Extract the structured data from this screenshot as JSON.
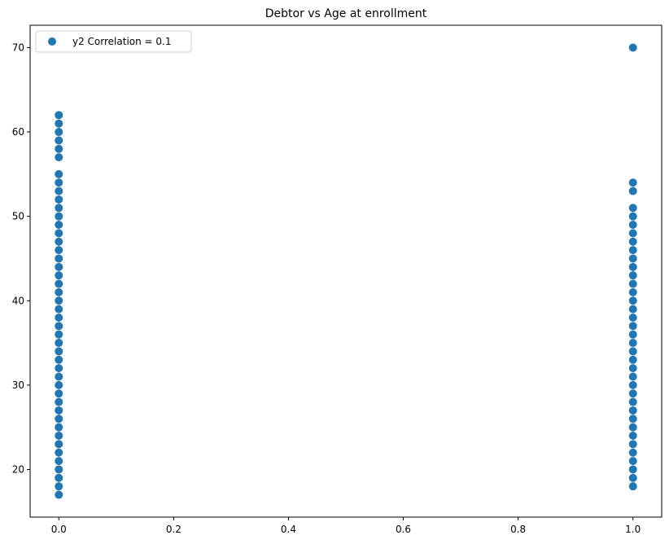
{
  "chart_data": {
    "type": "scatter",
    "title": "Debtor vs Age at enrollment",
    "xlabel": "",
    "ylabel": "",
    "xlim": [
      -0.05,
      1.05
    ],
    "ylim": [
      14.35,
      72.65
    ],
    "x_ticks": [
      0.0,
      0.2,
      0.4,
      0.6,
      0.8,
      1.0
    ],
    "x_tick_labels": [
      "0.0",
      "0.2",
      "0.4",
      "0.6",
      "0.8",
      "1.0"
    ],
    "y_ticks": [
      20,
      30,
      40,
      50,
      60,
      70
    ],
    "y_tick_labels": [
      "20",
      "30",
      "40",
      "50",
      "60",
      "70"
    ],
    "grid": false,
    "legend_position": "top-left",
    "color": "#1f77b4",
    "series": [
      {
        "name": "y2 Correlation = 0.1",
        "points": [
          [
            0,
            17
          ],
          [
            0,
            18
          ],
          [
            0,
            19
          ],
          [
            0,
            20
          ],
          [
            0,
            21
          ],
          [
            0,
            22
          ],
          [
            0,
            23
          ],
          [
            0,
            24
          ],
          [
            0,
            25
          ],
          [
            0,
            26
          ],
          [
            0,
            27
          ],
          [
            0,
            28
          ],
          [
            0,
            29
          ],
          [
            0,
            30
          ],
          [
            0,
            31
          ],
          [
            0,
            32
          ],
          [
            0,
            33
          ],
          [
            0,
            34
          ],
          [
            0,
            35
          ],
          [
            0,
            36
          ],
          [
            0,
            37
          ],
          [
            0,
            38
          ],
          [
            0,
            39
          ],
          [
            0,
            40
          ],
          [
            0,
            41
          ],
          [
            0,
            42
          ],
          [
            0,
            43
          ],
          [
            0,
            44
          ],
          [
            0,
            45
          ],
          [
            0,
            46
          ],
          [
            0,
            47
          ],
          [
            0,
            48
          ],
          [
            0,
            49
          ],
          [
            0,
            50
          ],
          [
            0,
            51
          ],
          [
            0,
            52
          ],
          [
            0,
            53
          ],
          [
            0,
            54
          ],
          [
            0,
            55
          ],
          [
            0,
            57
          ],
          [
            0,
            58
          ],
          [
            0,
            59
          ],
          [
            0,
            60
          ],
          [
            0,
            61
          ],
          [
            0,
            62
          ],
          [
            1,
            18
          ],
          [
            1,
            19
          ],
          [
            1,
            20
          ],
          [
            1,
            21
          ],
          [
            1,
            22
          ],
          [
            1,
            23
          ],
          [
            1,
            24
          ],
          [
            1,
            25
          ],
          [
            1,
            26
          ],
          [
            1,
            27
          ],
          [
            1,
            28
          ],
          [
            1,
            29
          ],
          [
            1,
            30
          ],
          [
            1,
            31
          ],
          [
            1,
            32
          ],
          [
            1,
            33
          ],
          [
            1,
            34
          ],
          [
            1,
            35
          ],
          [
            1,
            36
          ],
          [
            1,
            37
          ],
          [
            1,
            38
          ],
          [
            1,
            39
          ],
          [
            1,
            40
          ],
          [
            1,
            41
          ],
          [
            1,
            42
          ],
          [
            1,
            43
          ],
          [
            1,
            44
          ],
          [
            1,
            45
          ],
          [
            1,
            46
          ],
          [
            1,
            47
          ],
          [
            1,
            48
          ],
          [
            1,
            49
          ],
          [
            1,
            50
          ],
          [
            1,
            51
          ],
          [
            1,
            53
          ],
          [
            1,
            54
          ],
          [
            1,
            70
          ]
        ]
      }
    ]
  }
}
